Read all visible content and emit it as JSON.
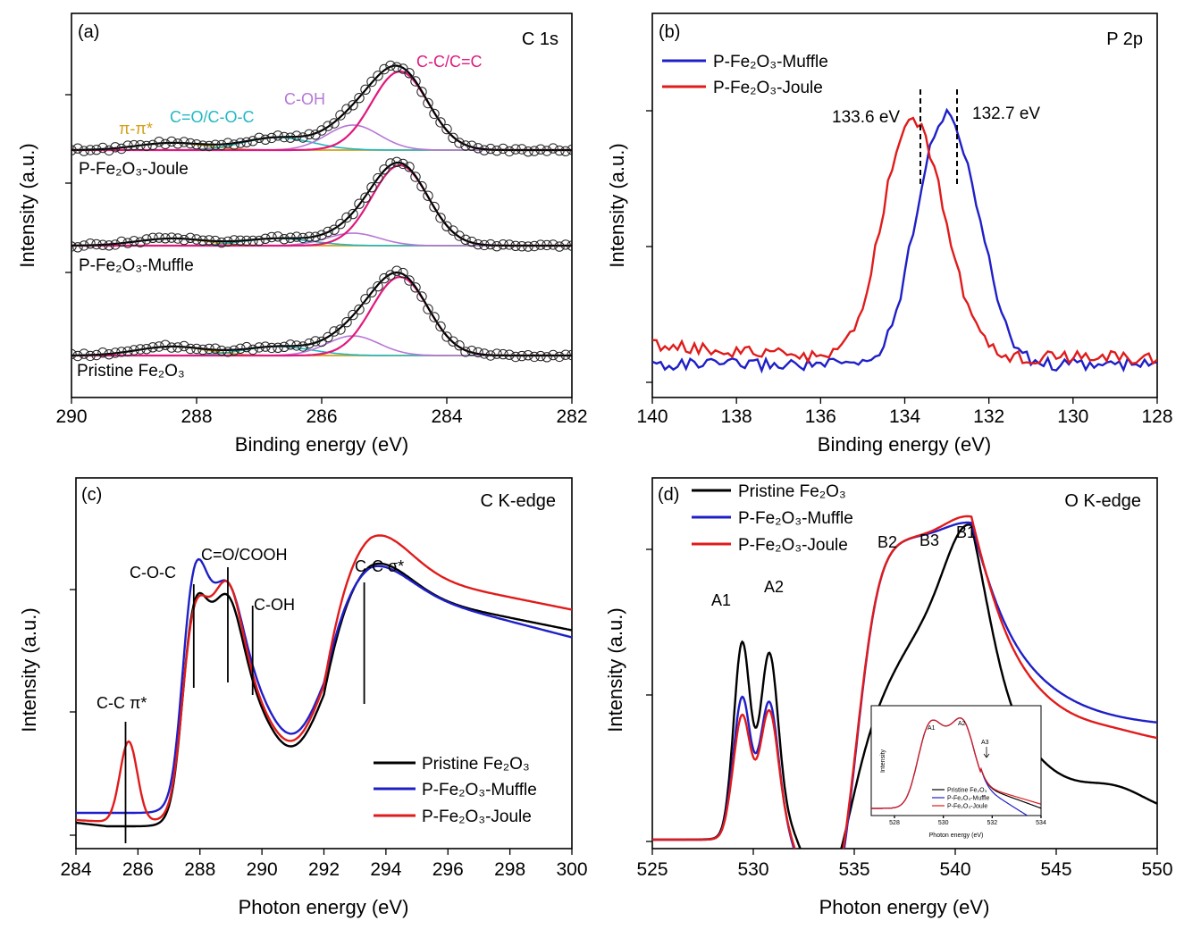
{
  "chart_data": [
    {
      "id": "a",
      "type": "line",
      "panel_label": "(a)",
      "title": "C 1s",
      "xlabel": "Binding energy (eV)",
      "ylabel": "Intensity (a.u.)",
      "xlim": [
        290,
        282
      ],
      "xticks": [
        "290",
        "288",
        "286",
        "284",
        "282"
      ],
      "stack_labels": [
        "P-Fe₂O₃-Joule",
        "P-Fe₂O₃-Muffle",
        "Pristine Fe₂O₃"
      ],
      "peak_labels": [
        {
          "text": "π-π*",
          "color": "#d4a017"
        },
        {
          "text": "C=O/C-O-C",
          "color": "#21b8c2"
        },
        {
          "text": "C-OH",
          "color": "#b677d6"
        },
        {
          "text": "C-C/C=C",
          "color": "#e0197d"
        }
      ],
      "components": [
        {
          "name": "π-π*",
          "center": 288.4,
          "color": "#d4a017"
        },
        {
          "name": "C=O/C-O-C",
          "center": 286.7,
          "color": "#21b8c2"
        },
        {
          "name": "C-OH",
          "center": 285.5,
          "color": "#b677d6"
        },
        {
          "name": "C-C/C=C",
          "center": 284.75,
          "color": "#e0197d"
        }
      ]
    },
    {
      "id": "b",
      "type": "line",
      "panel_label": "(b)",
      "title": "P 2p",
      "xlabel": "Binding energy (eV)",
      "ylabel": "Intensity (a.u.)",
      "xlim": [
        140,
        128
      ],
      "xticks": [
        "140",
        "138",
        "136",
        "134",
        "132",
        "130",
        "128"
      ],
      "legend": [
        "P-Fe₂O₃-Muffle",
        "P-Fe₂O₃-Joule"
      ],
      "series": [
        {
          "name": "P-Fe₂O₃-Muffle",
          "color": "#1f1fc8",
          "peak_eV": 132.7
        },
        {
          "name": "P-Fe₂O₃-Joule",
          "color": "#e01b1b",
          "peak_eV": 133.6
        }
      ],
      "annotations": [
        {
          "text": "133.6 eV",
          "x": 133.6,
          "color": "#e01b1b"
        },
        {
          "text": "132.7 eV",
          "x": 132.7,
          "color": "#1f1fc8"
        }
      ]
    },
    {
      "id": "c",
      "type": "line",
      "panel_label": "(c)",
      "title": "C K-edge",
      "xlabel": "Photon energy (eV)",
      "ylabel": "Intensity (a.u.)",
      "xlim": [
        284,
        300
      ],
      "xticks": [
        "284",
        "286",
        "288",
        "290",
        "292",
        "294",
        "296",
        "298",
        "300"
      ],
      "legend": [
        "Pristine Fe₂O₃",
        "P-Fe₂O₃-Muffle",
        "P-Fe₂O₃-Joule"
      ],
      "series": [
        {
          "name": "Pristine Fe₂O₃",
          "color": "#000000"
        },
        {
          "name": "P-Fe₂O₃-Muffle",
          "color": "#1f1fc8"
        },
        {
          "name": "P-Fe₂O₃-Joule",
          "color": "#e01b1b"
        }
      ],
      "annotations": [
        {
          "text": "C-C π*",
          "x": 285.6
        },
        {
          "text": "C-O-C",
          "x": 287.8
        },
        {
          "text": "C=O/COOH",
          "x": 288.9
        },
        {
          "text": "C-OH",
          "x": 289.7
        },
        {
          "text": "C-C σ*",
          "x": 293.3
        }
      ]
    },
    {
      "id": "d",
      "type": "line",
      "panel_label": "(d)",
      "title": "O K-edge",
      "xlabel": "Photon energy (eV)",
      "ylabel": "Intensity (a.u.)",
      "xlim": [
        525,
        550
      ],
      "xticks": [
        "525",
        "530",
        "535",
        "540",
        "545",
        "550"
      ],
      "legend": [
        "Pristine Fe₂O₃",
        "P-Fe₂O₃-Muffle",
        "P-Fe₂O₃-Joule"
      ],
      "series": [
        {
          "name": "Pristine Fe₂O₃",
          "color": "#000000"
        },
        {
          "name": "P-Fe₂O₃-Muffle",
          "color": "#1f1fc8"
        },
        {
          "name": "P-Fe₂O₃-Joule",
          "color": "#e01b1b"
        }
      ],
      "annotations": [
        {
          "text": "A1",
          "x": 529.4
        },
        {
          "text": "A2",
          "x": 530.8
        },
        {
          "text": "B2",
          "x": 537.0
        },
        {
          "text": "B3",
          "x": 538.8
        },
        {
          "text": "B1",
          "x": 540.5
        }
      ],
      "inset": {
        "xlabel": "Photon energy (eV)",
        "ylabel": "Intensity",
        "xlim": [
          527,
          534
        ],
        "xticks": [
          "528",
          "530",
          "532",
          "534"
        ],
        "legend": [
          "Pristine Fe₂O₃",
          "P-Fe₂O₃-Muffle",
          "P-Fe₂O₃-Joule"
        ],
        "annotations": [
          "A1",
          "A2",
          "A3"
        ]
      }
    }
  ]
}
